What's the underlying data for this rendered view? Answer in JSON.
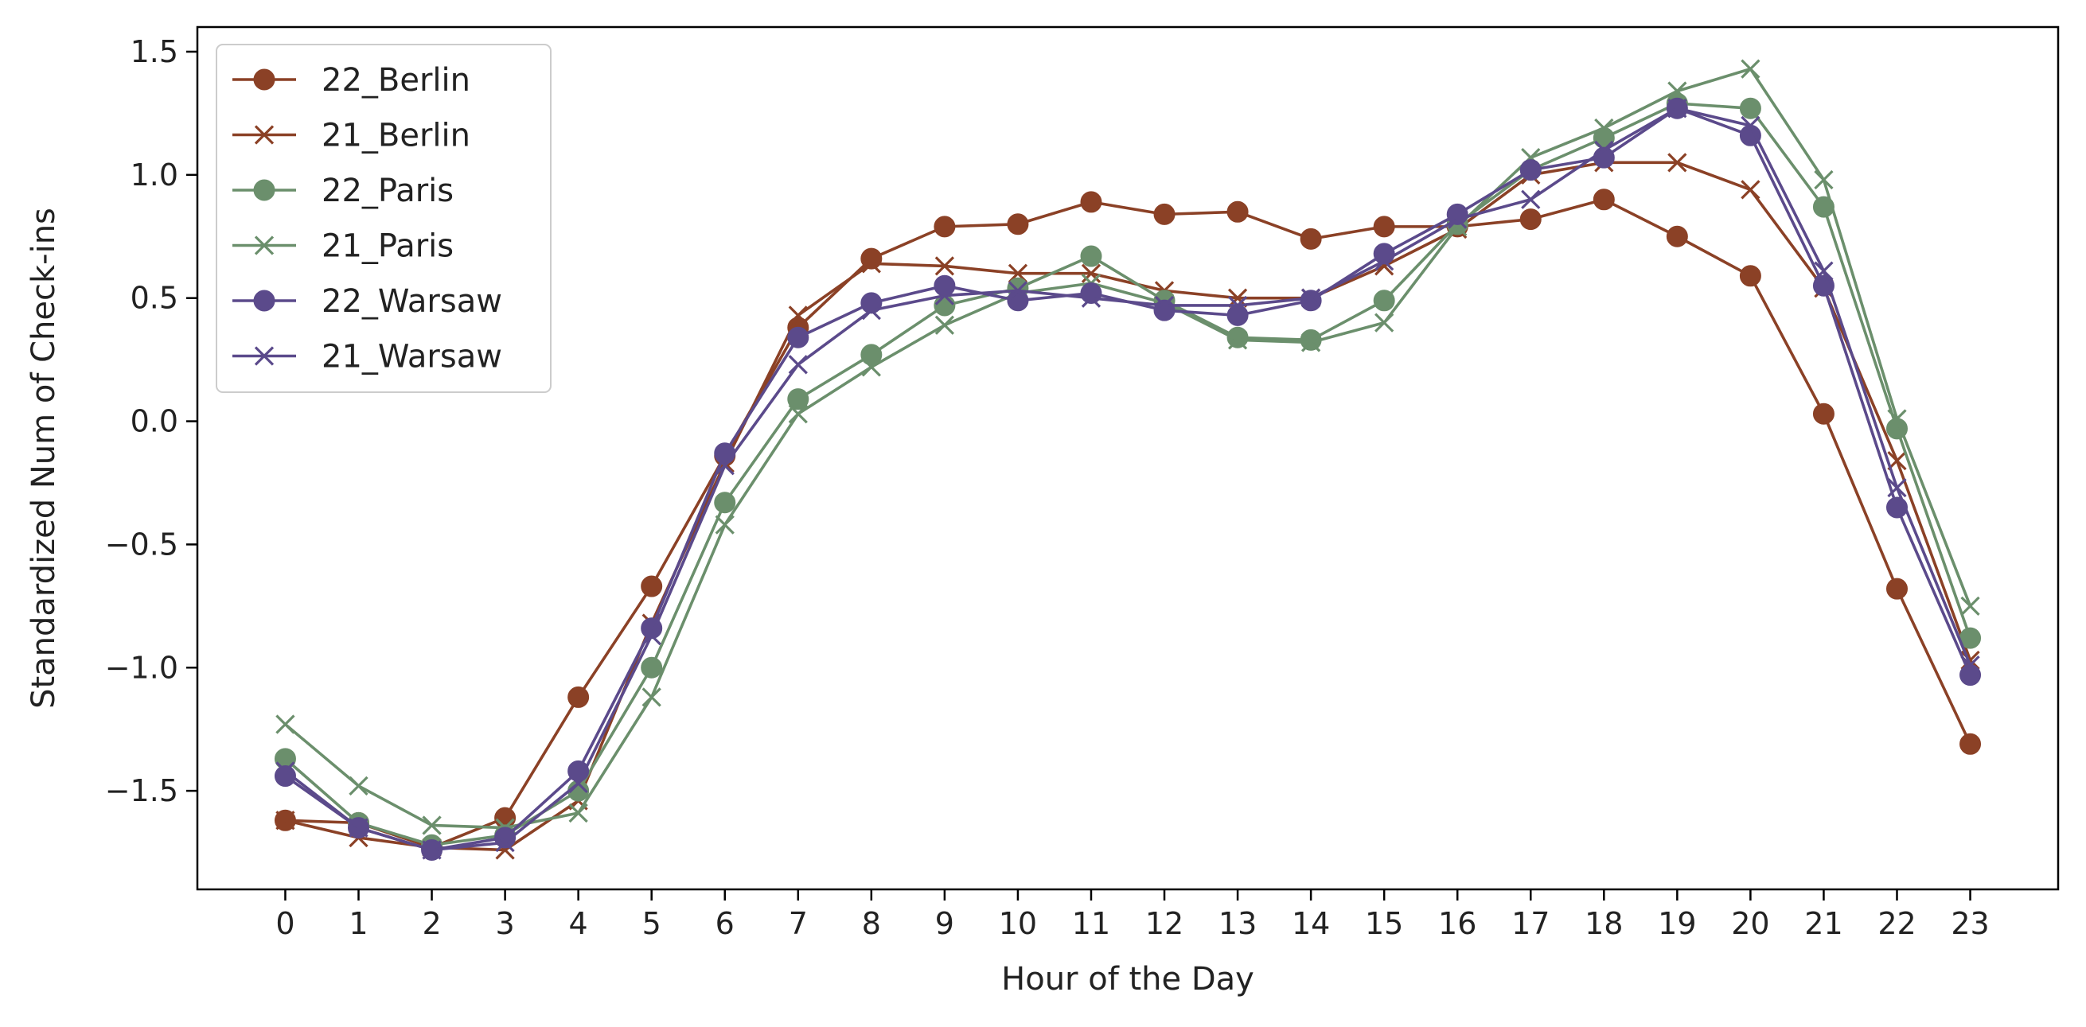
{
  "chart_data": {
    "type": "line",
    "title": "",
    "xlabel": "Hour of the Day",
    "ylabel": "Standardized Num of Check-ins",
    "x": [
      0,
      1,
      2,
      3,
      4,
      5,
      6,
      7,
      8,
      9,
      10,
      11,
      12,
      13,
      14,
      15,
      16,
      17,
      18,
      19,
      20,
      21,
      22,
      23
    ],
    "x_tick_labels": [
      "0",
      "1",
      "2",
      "3",
      "4",
      "5",
      "6",
      "7",
      "8",
      "9",
      "10",
      "11",
      "12",
      "13",
      "14",
      "15",
      "16",
      "17",
      "18",
      "19",
      "20",
      "21",
      "22",
      "23"
    ],
    "y_ticks": [
      1.5,
      1.0,
      0.5,
      0.0,
      -0.5,
      -1.0,
      -1.5
    ],
    "y_tick_labels": [
      "1.5",
      "1.0",
      "0.5",
      "0.0",
      "−0.5",
      "−1.0",
      "−1.5"
    ],
    "xlim": [
      -1.2,
      24.2
    ],
    "ylim": [
      -1.9,
      1.6
    ],
    "grid": false,
    "legend_position": "upper-left",
    "series": [
      {
        "name": "22_Berlin",
        "color": "#8B4126",
        "marker": "circle",
        "values": [
          -1.62,
          -1.63,
          -1.73,
          -1.61,
          -1.12,
          -0.67,
          -0.14,
          0.38,
          0.66,
          0.79,
          0.8,
          0.89,
          0.84,
          0.85,
          0.74,
          0.79,
          0.79,
          0.82,
          0.9,
          0.75,
          0.59,
          0.03,
          -0.68,
          -1.31
        ]
      },
      {
        "name": "21_Berlin",
        "color": "#8B4126",
        "marker": "x",
        "values": [
          -1.62,
          -1.69,
          -1.73,
          -1.74,
          -1.54,
          -0.82,
          -0.17,
          0.43,
          0.64,
          0.63,
          0.6,
          0.6,
          0.53,
          0.5,
          0.5,
          0.63,
          0.78,
          1.0,
          1.05,
          1.05,
          0.94,
          0.54,
          -0.16,
          -0.97
        ]
      },
      {
        "name": "22_Paris",
        "color": "#6B8F6C",
        "marker": "circle",
        "values": [
          -1.37,
          -1.63,
          -1.72,
          -1.68,
          -1.5,
          -1.0,
          -0.33,
          0.09,
          0.27,
          0.47,
          0.54,
          0.67,
          0.49,
          0.34,
          0.33,
          0.49,
          0.8,
          1.02,
          1.15,
          1.29,
          1.27,
          0.87,
          -0.03,
          -0.88
        ]
      },
      {
        "name": "21_Paris",
        "color": "#6B8F6C",
        "marker": "x",
        "values": [
          -1.23,
          -1.48,
          -1.64,
          -1.65,
          -1.59,
          -1.12,
          -0.42,
          0.03,
          0.22,
          0.39,
          0.52,
          0.56,
          0.48,
          0.33,
          0.32,
          0.4,
          0.79,
          1.07,
          1.19,
          1.34,
          1.43,
          0.98,
          0.01,
          -0.75
        ]
      },
      {
        "name": "22_Warsaw",
        "color": "#5B4A8B",
        "marker": "circle",
        "values": [
          -1.44,
          -1.65,
          -1.74,
          -1.69,
          -1.42,
          -0.84,
          -0.13,
          0.34,
          0.48,
          0.55,
          0.49,
          0.52,
          0.45,
          0.43,
          0.49,
          0.68,
          0.84,
          1.02,
          1.07,
          1.27,
          1.16,
          0.55,
          -0.35,
          -1.03
        ]
      },
      {
        "name": "21_Warsaw",
        "color": "#5B4A8B",
        "marker": "x",
        "values": [
          -1.42,
          -1.65,
          -1.74,
          -1.71,
          -1.47,
          -0.87,
          -0.18,
          0.23,
          0.45,
          0.51,
          0.53,
          0.5,
          0.47,
          0.47,
          0.5,
          0.65,
          0.82,
          0.9,
          1.1,
          1.27,
          1.2,
          0.61,
          -0.27,
          -0.99
        ]
      }
    ]
  }
}
